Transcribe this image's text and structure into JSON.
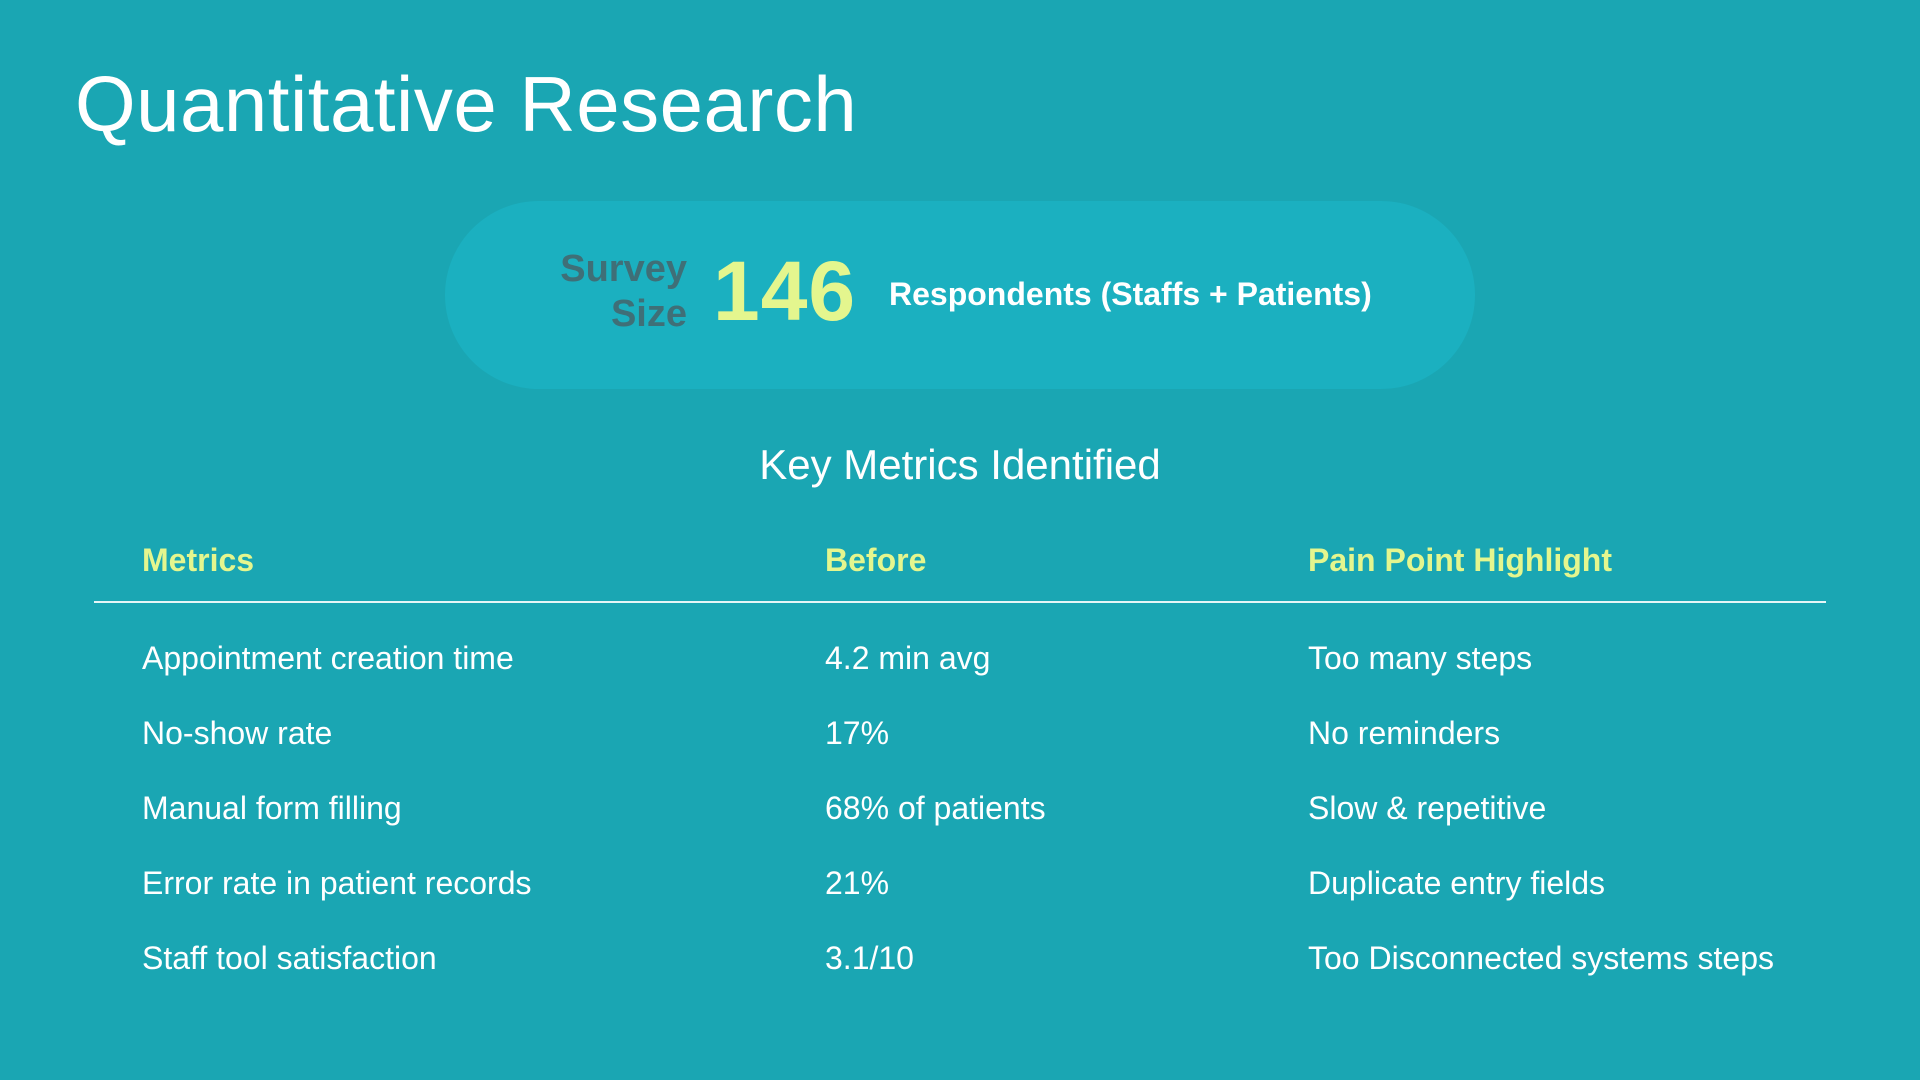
{
  "page": {
    "title": "Quantitative Research",
    "background": "#1aa6b3"
  },
  "survey": {
    "label_line1": "Survey",
    "label_line2": "Size",
    "value": "146",
    "description": "Respondents (Staffs + Patients)",
    "value_color": "#e4f68e",
    "pill_color": "#1bb0c0"
  },
  "metrics": {
    "section_title": "Key Metrics Identified",
    "header_color": "#e4f68e",
    "headers": {
      "metric": "Metrics",
      "before": "Before",
      "pain": "Pain Point Highlight"
    },
    "rows": [
      {
        "metric": "Appointment creation time",
        "before": "4.2 min avg",
        "pain": "Too many steps"
      },
      {
        "metric": "No-show rate",
        "before": "17%",
        "pain": "No reminders"
      },
      {
        "metric": "Manual form filling",
        "before": "68% of patients",
        "pain": "Slow & repetitive"
      },
      {
        "metric": "Error rate in patient records",
        "before": "21%",
        "pain": "Duplicate entry fields"
      },
      {
        "metric": "Staff tool satisfaction",
        "before": "3.1/10",
        "pain": "Too Disconnected systems steps"
      }
    ]
  }
}
